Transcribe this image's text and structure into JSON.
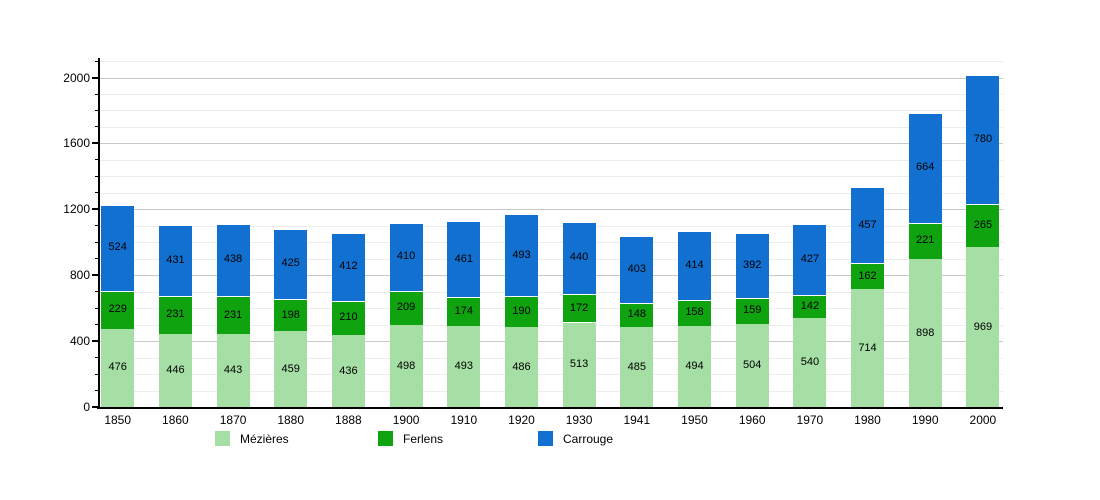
{
  "chart_data": {
    "type": "bar",
    "stacked": true,
    "categories": [
      "1850",
      "1860",
      "1870",
      "1880",
      "1888",
      "1900",
      "1910",
      "1920",
      "1930",
      "1941",
      "1950",
      "1960",
      "1970",
      "1980",
      "1990",
      "2000"
    ],
    "series": [
      {
        "name": "Mézières",
        "color": "#A5DFA5",
        "values": [
          476,
          446,
          443,
          459,
          436,
          498,
          493,
          486,
          513,
          485,
          494,
          504,
          540,
          714,
          898,
          969
        ]
      },
      {
        "name": "Ferlens",
        "color": "#10A310",
        "values": [
          229,
          231,
          231,
          198,
          210,
          209,
          174,
          190,
          172,
          148,
          158,
          159,
          142,
          162,
          221,
          265
        ]
      },
      {
        "name": "Carrouge",
        "color": "#1170D0",
        "values": [
          524,
          431,
          438,
          425,
          412,
          410,
          461,
          493,
          440,
          403,
          414,
          392,
          427,
          457,
          664,
          780
        ]
      }
    ],
    "xlabel": "",
    "ylabel": "",
    "ylim": [
      0,
      2100
    ],
    "yticks": [
      0,
      400,
      800,
      1200,
      1600,
      2000
    ],
    "minor_grid_interval": 100,
    "major_grid_interval": 400,
    "grid": true,
    "bar_value_labels": true,
    "legend_position": "bottom",
    "axis_color": "#000000",
    "value_label_color": "#000000"
  }
}
